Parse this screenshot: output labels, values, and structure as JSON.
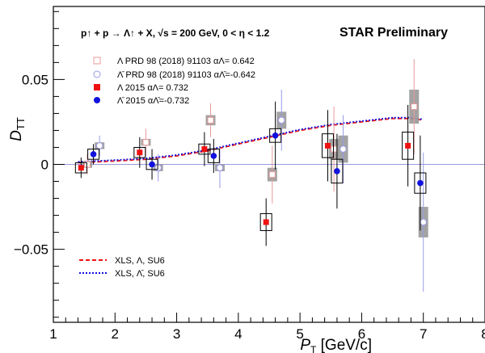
{
  "chart_data": {
    "type": "scatter",
    "title": "",
    "reaction_label": "p↑ + p → Λ↑ + X,   √s = 200 GeV,  0 < η < 1.2",
    "collaboration_label": "STAR Preliminary",
    "xlabel": "P_T [GeV/c]",
    "ylabel": "D_TT",
    "xlim": [
      1,
      8
    ],
    "ylim": [
      -0.093,
      0.093
    ],
    "x_ticks": [
      "1",
      "2",
      "3",
      "4",
      "5",
      "6",
      "7",
      "8"
    ],
    "x_tick_values": [
      1,
      2,
      3,
      4,
      5,
      6,
      7,
      8
    ],
    "y_ticks": [
      "0.05",
      "0",
      "−0.05"
    ],
    "y_tick_values": [
      0.05,
      0,
      -0.05
    ],
    "grid": false,
    "legend_position": "top-left",
    "colors": {
      "red": "#ee1111",
      "blue": "#1111dd",
      "pale_red": "#e89a9a",
      "pale_blue": "#9a9ae6",
      "sys_box": "#999999"
    },
    "series": [
      {
        "name": "Λ  PRD 98 (2018) 91103  α_Λ=0.642",
        "legend_text": "Λ   PRD 98 (2018) 91103   αΛ= 0.642",
        "marker": "open-square",
        "color": "#e89a9a",
        "points": [
          {
            "x": 1.55,
            "y": 0.0,
            "stat": 0.006,
            "sys": 0.002
          },
          {
            "x": 2.5,
            "y": 0.013,
            "stat": 0.008,
            "sys": 0.002
          },
          {
            "x": 3.55,
            "y": 0.026,
            "stat": 0.01,
            "sys": 0.003
          },
          {
            "x": 4.55,
            "y": -0.006,
            "stat": 0.017,
            "sys": 0.004
          },
          {
            "x": 5.55,
            "y": 0.009,
            "stat": 0.025,
            "sys": 0.006
          },
          {
            "x": 6.85,
            "y": 0.034,
            "stat": 0.028,
            "sys": 0.01
          }
        ]
      },
      {
        "name": "Λ̄  PRD 98 (2018) 91103  α_Λ̄=-0.642",
        "legend_text": "Λ̄   PRD 98 (2018) 91103   αΛ̄=-0.642",
        "marker": "open-circle",
        "color": "#9a9ae6",
        "points": [
          {
            "x": 1.75,
            "y": 0.011,
            "stat": 0.006,
            "sys": 0.002
          },
          {
            "x": 2.7,
            "y": -0.002,
            "stat": 0.008,
            "sys": 0.002
          },
          {
            "x": 3.7,
            "y": -0.002,
            "stat": 0.012,
            "sys": 0.002
          },
          {
            "x": 4.7,
            "y": 0.026,
            "stat": 0.018,
            "sys": 0.005
          },
          {
            "x": 5.7,
            "y": 0.009,
            "stat": 0.02,
            "sys": 0.008
          },
          {
            "x": 7.0,
            "y": -0.034,
            "stat": 0.041,
            "sys": 0.009
          }
        ]
      },
      {
        "name": "Λ 2015 α_Λ=0.732",
        "legend_text": "Λ   2015   αΛ= 0.732",
        "marker": "filled-square",
        "color": "#ee1111",
        "points": [
          {
            "x": 1.45,
            "y": -0.002,
            "stat": 0.006,
            "sys": 0.003
          },
          {
            "x": 2.4,
            "y": 0.007,
            "stat": 0.009,
            "sys": 0.003
          },
          {
            "x": 3.45,
            "y": 0.009,
            "stat": 0.01,
            "sys": 0.003
          },
          {
            "x": 4.45,
            "y": -0.034,
            "stat": 0.014,
            "sys": 0.005
          },
          {
            "x": 5.45,
            "y": 0.011,
            "stat": 0.021,
            "sys": 0.007
          },
          {
            "x": 6.75,
            "y": 0.011,
            "stat": 0.024,
            "sys": 0.008
          }
        ]
      },
      {
        "name": "Λ̄ 2015 α_Λ̄=-0.732",
        "legend_text": "Λ̄   2015   αΛ̄=-0.732",
        "marker": "filled-circle",
        "color": "#1111dd",
        "points": [
          {
            "x": 1.65,
            "y": 0.006,
            "stat": 0.006,
            "sys": 0.003
          },
          {
            "x": 2.6,
            "y": 0.0,
            "stat": 0.009,
            "sys": 0.003
          },
          {
            "x": 3.6,
            "y": 0.005,
            "stat": 0.01,
            "sys": 0.004
          },
          {
            "x": 4.6,
            "y": 0.017,
            "stat": 0.02,
            "sys": 0.004
          },
          {
            "x": 5.6,
            "y": -0.004,
            "stat": 0.022,
            "sys": 0.007
          },
          {
            "x": 6.95,
            "y": -0.011,
            "stat": 0.028,
            "sys": 0.006
          }
        ]
      }
    ],
    "curves": [
      {
        "name": "XLS, Λ, SU6",
        "legend_text": "XLS, Λ, SU6",
        "style": "dashed",
        "color": "#ee1111",
        "x": [
          1.4,
          2.0,
          2.5,
          3.0,
          3.5,
          4.0,
          4.5,
          5.0,
          5.5,
          6.0,
          6.5,
          6.8,
          7.0
        ],
        "y": [
          0.001,
          0.002,
          0.003,
          0.005,
          0.008,
          0.012,
          0.016,
          0.02,
          0.023,
          0.025,
          0.027,
          0.027,
          0.026
        ]
      },
      {
        "name": "XLS, Λ̄, SU6",
        "legend_text": "XLS, Λ̄, SU6",
        "style": "dotted",
        "color": "#1111dd",
        "x": [
          1.4,
          2.0,
          2.5,
          3.0,
          3.5,
          4.0,
          4.5,
          5.0,
          5.5,
          6.0,
          6.5,
          6.8,
          7.0
        ],
        "y": [
          0.0015,
          0.0025,
          0.0035,
          0.0055,
          0.0085,
          0.0125,
          0.0165,
          0.0205,
          0.0235,
          0.0255,
          0.0275,
          0.0275,
          0.0265
        ]
      }
    ],
    "reference_line": {
      "y": 0,
      "color": "#9999dd"
    }
  }
}
